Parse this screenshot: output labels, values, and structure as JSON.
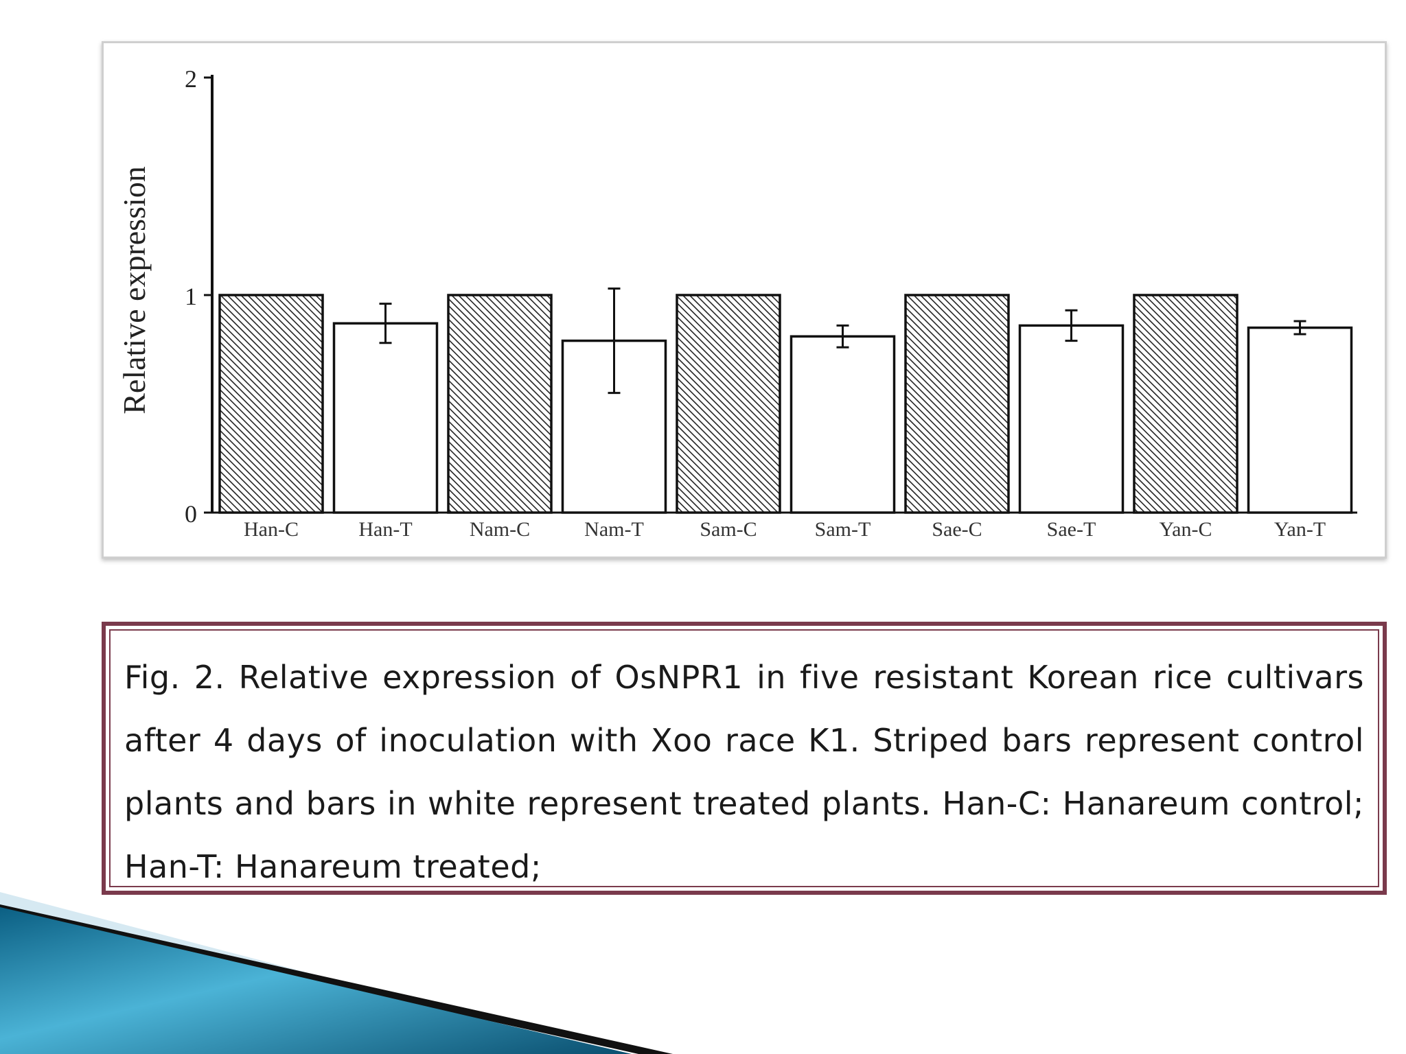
{
  "chart_data": {
    "type": "bar",
    "categories": [
      "Han-C",
      "Han-T",
      "Nam-C",
      "Nam-T",
      "Sam-C",
      "Sam-T",
      "Sae-C",
      "Sae-T",
      "Yan-C",
      "Yan-T"
    ],
    "values": [
      1.0,
      0.87,
      1.0,
      0.79,
      1.0,
      0.81,
      1.0,
      0.86,
      1.0,
      0.85
    ],
    "errors": [
      0,
      0.09,
      0,
      0.24,
      0,
      0.05,
      0,
      0.07,
      0,
      0.03
    ],
    "bar_styles": [
      "striped",
      "white",
      "striped",
      "white",
      "striped",
      "white",
      "striped",
      "white",
      "striped",
      "white"
    ],
    "ylabel": "Relative expression",
    "y_ticks": [
      "0",
      "1",
      "2"
    ],
    "ylim": [
      0,
      2
    ],
    "grid": false
  },
  "caption": {
    "text": "Fig. 2. Relative expression of OsNPR1 in five resistant Korean rice cultivars after 4 days of inoculation with Xoo race K1. Striped bars represent control plants and bars in white represent treated plants. Han-C: Hanareum control; Han-T: Hanareum treated;"
  },
  "colors": {
    "caption_border": "#7a3a4c",
    "slide_accent_dark": "#0d4f6e",
    "slide_accent_light": "#5fb8d8"
  }
}
